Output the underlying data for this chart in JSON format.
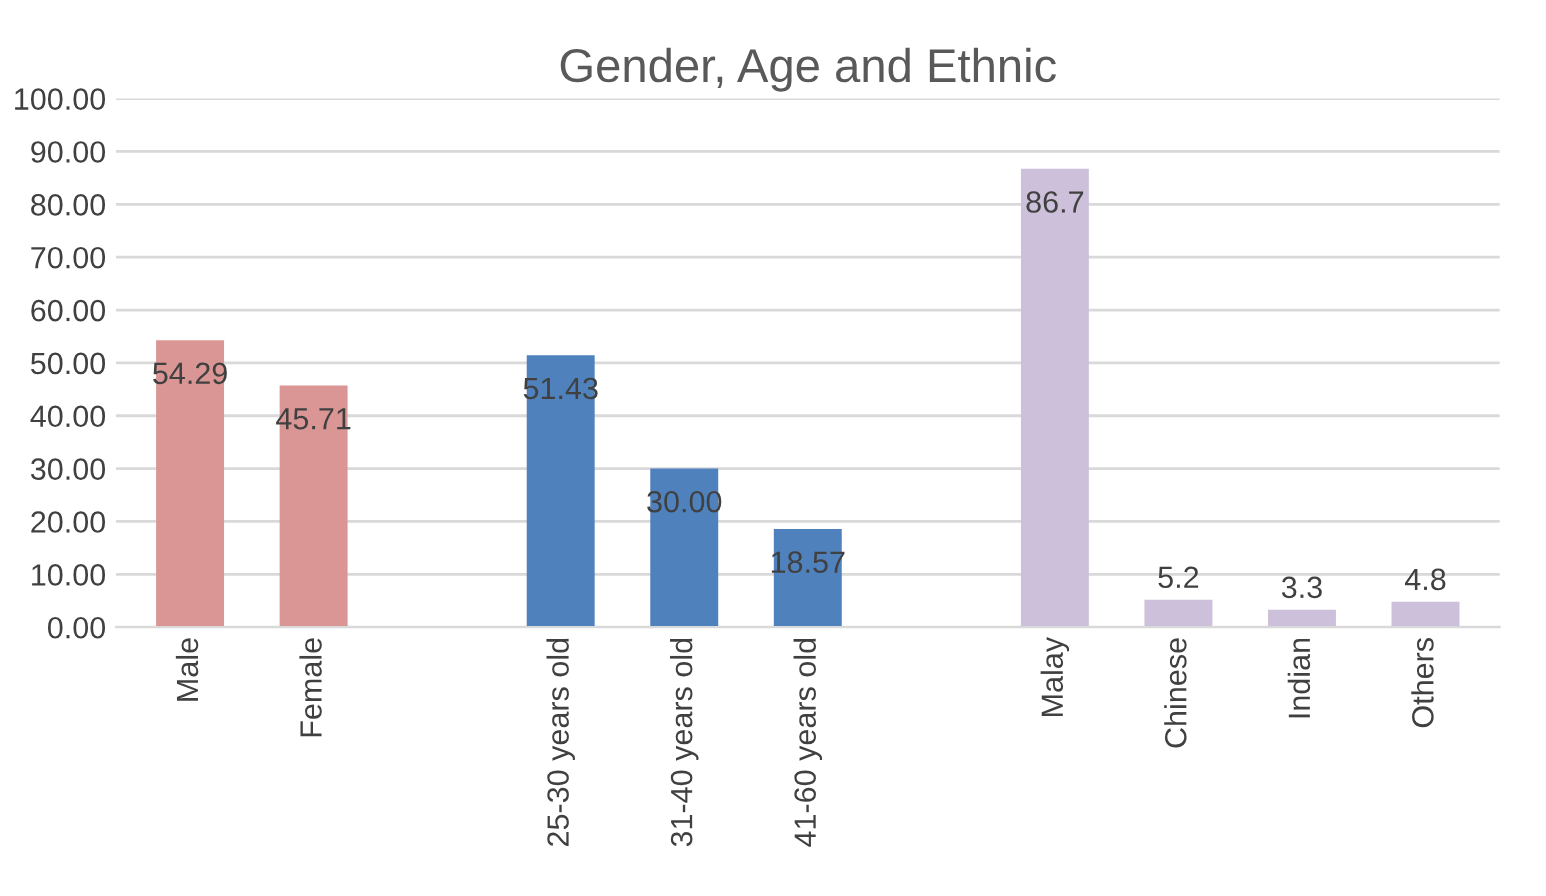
{
  "chart_data": {
    "type": "bar",
    "title": "Gender, Age and Ethnic",
    "categories": [
      "Male",
      "Female",
      null,
      "25-30 years old",
      "31-40 years old",
      "41-60 years old",
      null,
      "Malay",
      "Chinese",
      "Indian",
      "Others"
    ],
    "values": [
      54.29,
      45.71,
      null,
      51.43,
      30.0,
      18.57,
      null,
      86.7,
      5.2,
      3.3,
      4.8
    ],
    "value_labels": [
      "54.29",
      "45.71",
      null,
      "51.43",
      "30.00",
      "18.57",
      null,
      "86.7",
      "5.2",
      "3.3",
      "4.8"
    ],
    "colors": [
      "#d99694",
      "#d99694",
      null,
      "#4f81bd",
      "#4f81bd",
      "#4f81bd",
      null,
      "#ccc0da",
      "#ccc0da",
      "#ccc0da",
      "#ccc0da"
    ],
    "ylim": [
      0,
      100
    ],
    "yticks": [
      {
        "value": 0,
        "label": "0.00"
      },
      {
        "value": 10,
        "label": "10.00"
      },
      {
        "value": 20,
        "label": "20.00"
      },
      {
        "value": 30,
        "label": "30.00"
      },
      {
        "value": 40,
        "label": "40.00"
      },
      {
        "value": 50,
        "label": "50.00"
      },
      {
        "value": 60,
        "label": "60.00"
      },
      {
        "value": 70,
        "label": "70.00"
      },
      {
        "value": 80,
        "label": "80.00"
      },
      {
        "value": 90,
        "label": "90.00"
      },
      {
        "value": 100,
        "label": "100.00"
      }
    ],
    "grid": "y"
  }
}
